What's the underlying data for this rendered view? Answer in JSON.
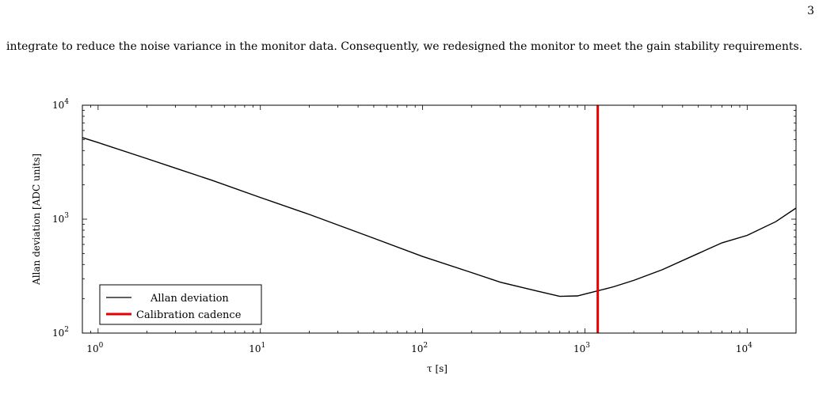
{
  "page": {
    "number": "3",
    "paragraph": "integrate to reduce the noise variance in the monitor data. Consequently, we redesigned the monitor to meet the gain stability requirements."
  },
  "chart_data": {
    "type": "line",
    "xlabel": "τ [s]",
    "ylabel": "Allan deviation [ADC units]",
    "xscale": "log",
    "yscale": "log",
    "xlim": [
      0.8,
      20000
    ],
    "ylim": [
      100,
      10000
    ],
    "x_ticks": [
      {
        "value": 1,
        "base": "10",
        "exp": "0"
      },
      {
        "value": 10,
        "base": "10",
        "exp": "1"
      },
      {
        "value": 100,
        "base": "10",
        "exp": "2"
      },
      {
        "value": 1000,
        "base": "10",
        "exp": "3"
      },
      {
        "value": 10000,
        "base": "10",
        "exp": "4"
      }
    ],
    "y_ticks": [
      {
        "value": 100,
        "base": "10",
        "exp": "2"
      },
      {
        "value": 1000,
        "base": "10",
        "exp": "3"
      },
      {
        "value": 10000,
        "base": "10",
        "exp": "4"
      }
    ],
    "series": [
      {
        "name": "Allan deviation",
        "color": "#000000",
        "x": [
          0.8,
          1,
          2,
          3,
          5,
          10,
          20,
          50,
          100,
          200,
          300,
          500,
          700,
          900,
          1200,
          1500,
          2000,
          3000,
          5000,
          7000,
          10000,
          15000,
          20000
        ],
        "y": [
          5200,
          4700,
          3400,
          2800,
          2200,
          1550,
          1100,
          680,
          470,
          340,
          280,
          235,
          210,
          212,
          235,
          255,
          290,
          360,
          500,
          620,
          720,
          950,
          1250
        ]
      }
    ],
    "vline": {
      "name": "Calibration cadence",
      "x": 1200,
      "color": "#e60000"
    },
    "legend": "bottom-left",
    "grid": false
  }
}
